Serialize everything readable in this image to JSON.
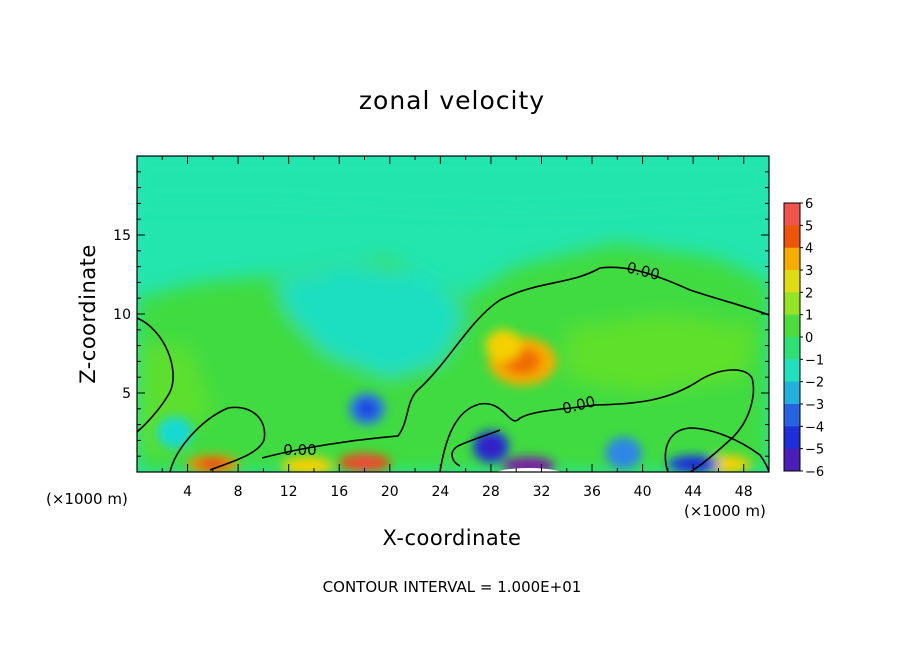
{
  "chart_data": {
    "type": "heatmap",
    "title": "zonal velocity",
    "xlabel": "X-coordinate",
    "ylabel": "Z-coordinate",
    "x_unit_label": "(×1000 m)",
    "footer": "CONTOUR INTERVAL = 1.000E+01",
    "xlim": [
      0,
      50
    ],
    "ylim": [
      0,
      20
    ],
    "x_ticks": [
      4,
      8,
      12,
      16,
      20,
      24,
      28,
      32,
      36,
      40,
      44,
      48
    ],
    "y_ticks": [
      5,
      10,
      15
    ],
    "colorbar": {
      "min": -6,
      "max": 6,
      "ticks": [
        6,
        5,
        4,
        3,
        2,
        1,
        0,
        -1,
        -2,
        -3,
        -4,
        -5,
        -6
      ],
      "tick_labels": [
        "6",
        "5",
        "4",
        "3",
        "2",
        "1",
        "0",
        "−1",
        "−2",
        "−3",
        "−4",
        "−5",
        "−6"
      ]
    },
    "contour_labels": [
      "0.00",
      "0.00",
      "0.00"
    ],
    "background_value": -1.2,
    "features": [
      {
        "x": 30.5,
        "z": 7.0,
        "value": 3.5
      },
      {
        "x": 29.0,
        "z": 8.0,
        "value": 3.0
      },
      {
        "x": 18.0,
        "z": 0.6,
        "value": 4.6
      },
      {
        "x": 6.0,
        "z": 0.5,
        "value": 4.0
      },
      {
        "x": 13.5,
        "z": 0.4,
        "value": 3.0
      },
      {
        "x": 46.5,
        "z": 0.5,
        "value": 3.0
      },
      {
        "x": 31.0,
        "z": 0.4,
        "value": -6.5
      },
      {
        "x": 18.2,
        "z": 4.0,
        "value": -3.2
      },
      {
        "x": 28.0,
        "z": 1.6,
        "value": -4.5
      },
      {
        "x": 38.5,
        "z": 1.2,
        "value": -3.0
      },
      {
        "x": 44.0,
        "z": 0.5,
        "value": -4.0
      },
      {
        "x": 3.0,
        "z": 2.5,
        "value": -2.0
      }
    ]
  }
}
